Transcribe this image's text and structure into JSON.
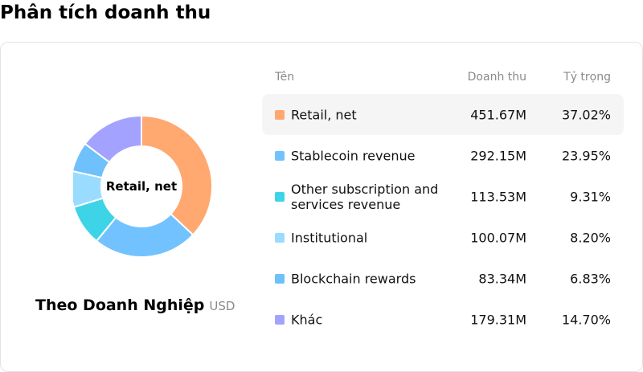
{
  "page_title": "Phân tích doanh thu",
  "chart_center_label": "Retail, net",
  "segment": {
    "name": "Theo Doanh Nghiệp",
    "unit": "USD"
  },
  "table": {
    "headers": {
      "name": "Tên",
      "revenue": "Doanh thu",
      "share": "Tỷ trọng"
    },
    "rows": [
      {
        "name": "Retail, net",
        "revenue": "451.67M",
        "share": "37.02%",
        "color": "#FFA870"
      },
      {
        "name": "Stablecoin revenue",
        "revenue": "292.15M",
        "share": "23.95%",
        "color": "#72C2FF"
      },
      {
        "name": "Other subscription and services revenue",
        "revenue": "113.53M",
        "share": "9.31%",
        "color": "#3DD4E8"
      },
      {
        "name": "Institutional",
        "revenue": "100.07M",
        "share": "8.20%",
        "color": "#9ADCFF"
      },
      {
        "name": "Blockchain rewards",
        "revenue": "83.34M",
        "share": "6.83%",
        "color": "#6EC1FA"
      },
      {
        "name": "Khác",
        "revenue": "179.31M",
        "share": "14.70%",
        "color": "#A3A3FF"
      }
    ]
  },
  "chart_data": {
    "type": "pie",
    "categories": [
      "Retail, net",
      "Stablecoin revenue",
      "Other subscription and services revenue",
      "Institutional",
      "Blockchain rewards",
      "Khác"
    ],
    "values": [
      37.02,
      23.95,
      9.31,
      8.2,
      6.83,
      14.7
    ],
    "colors": [
      "#FFA870",
      "#72C2FF",
      "#3DD4E8",
      "#9ADCFF",
      "#6EC1FA",
      "#A3A3FF"
    ]
  }
}
